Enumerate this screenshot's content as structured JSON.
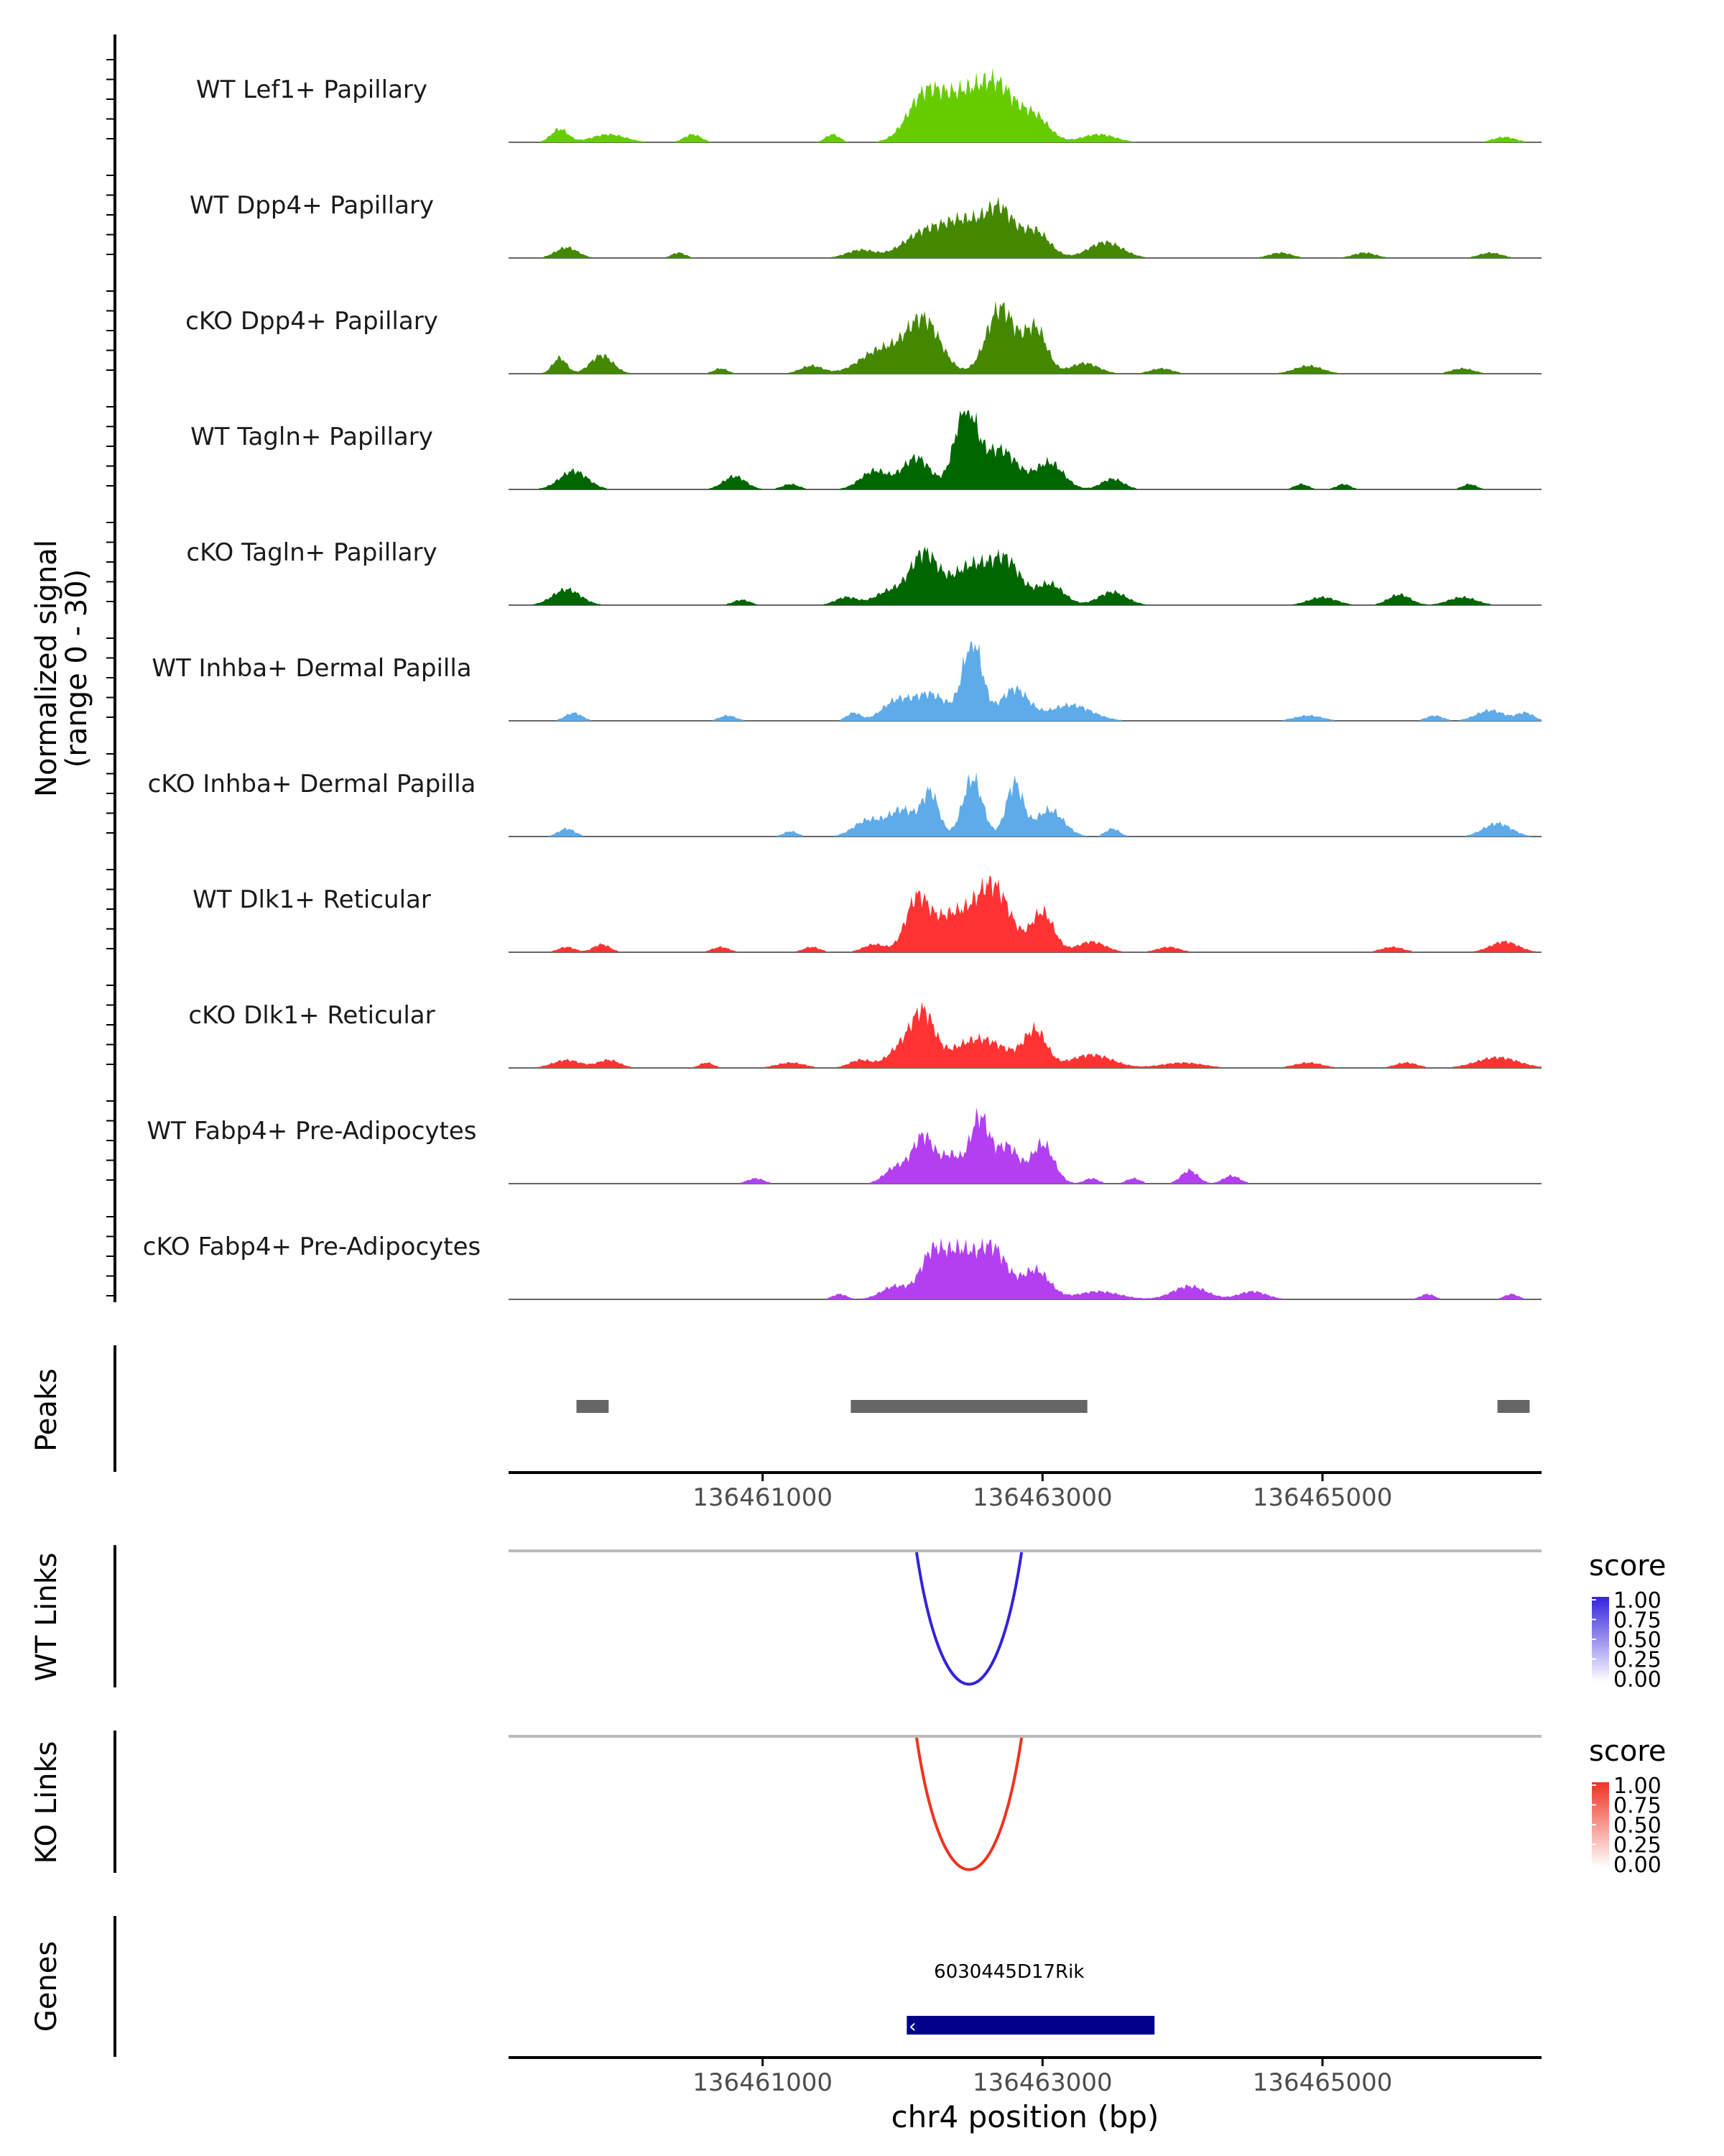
{
  "chart_data": {
    "type": "area",
    "title": "",
    "xlabel": "chr4 position (bp)",
    "x_range": [
      136459185,
      136466565
    ],
    "x_ticks": [
      "136461000",
      "136463000",
      "136465000"
    ],
    "coverage": {
      "ylabel_line1": "Normalized signal",
      "ylabel_line2": "(range 0 - 30)",
      "y_range": [
        0,
        30
      ],
      "tracks": [
        {
          "name": "WT Lef1+ Papillary",
          "color": "#66cc00",
          "peaks": [
            [
              136459550,
              5,
              0.06
            ],
            [
              136459900,
              3,
              0.12
            ],
            [
              136460500,
              3,
              0.06
            ],
            [
              136461500,
              3,
              0.05
            ],
            [
              136462150,
              15,
              0.12
            ],
            [
              136462450,
              18,
              0.18
            ],
            [
              136462700,
              15,
              0.12
            ],
            [
              136462950,
              9,
              0.1
            ],
            [
              136463400,
              3,
              0.12
            ],
            [
              136466300,
              2,
              0.08
            ]
          ]
        },
        {
          "name": "WT Dpp4+ Papillary",
          "color": "#448800",
          "peaks": [
            [
              136459600,
              4,
              0.08
            ],
            [
              136460400,
              2,
              0.05
            ],
            [
              136461700,
              3,
              0.1
            ],
            [
              136462150,
              9,
              0.15
            ],
            [
              136462450,
              13,
              0.15
            ],
            [
              136462700,
              16,
              0.1
            ],
            [
              136462950,
              10,
              0.1
            ],
            [
              136463450,
              6,
              0.12
            ],
            [
              136464700,
              2,
              0.08
            ],
            [
              136465300,
              2,
              0.08
            ],
            [
              136466200,
              2,
              0.08
            ]
          ]
        },
        {
          "name": "cKO Dpp4+ Papillary",
          "color": "#448800",
          "peaks": [
            [
              136459550,
              6,
              0.05
            ],
            [
              136459850,
              7,
              0.08
            ],
            [
              136460700,
              2,
              0.05
            ],
            [
              136461350,
              3,
              0.08
            ],
            [
              136461850,
              9,
              0.15
            ],
            [
              136462150,
              20,
              0.12
            ],
            [
              136462700,
              25,
              0.1
            ],
            [
              136462950,
              17,
              0.08
            ],
            [
              136463300,
              4,
              0.1
            ],
            [
              136463850,
              2,
              0.08
            ],
            [
              136464900,
              3,
              0.1
            ],
            [
              136466000,
              2,
              0.08
            ]
          ]
        },
        {
          "name": "WT Tagln+ Papillary",
          "color": "#006600",
          "peaks": [
            [
              136459650,
              7,
              0.1
            ],
            [
              136460800,
              5,
              0.08
            ],
            [
              136461200,
              2,
              0.06
            ],
            [
              136461800,
              7,
              0.1
            ],
            [
              136462100,
              12,
              0.1
            ],
            [
              136462450,
              30,
              0.08
            ],
            [
              136462700,
              15,
              0.12
            ],
            [
              136463050,
              10,
              0.1
            ],
            [
              136463500,
              4,
              0.08
            ],
            [
              136464850,
              2,
              0.05
            ],
            [
              136465150,
              2,
              0.05
            ],
            [
              136466050,
              2,
              0.05
            ]
          ]
        },
        {
          "name": "cKO Tagln+ Papillary",
          "color": "#006600",
          "peaks": [
            [
              136459600,
              6,
              0.1
            ],
            [
              136460850,
              2,
              0.06
            ],
            [
              136461600,
              3,
              0.08
            ],
            [
              136461900,
              5,
              0.1
            ],
            [
              136462150,
              19,
              0.1
            ],
            [
              136462500,
              15,
              0.15
            ],
            [
              136462750,
              14,
              0.1
            ],
            [
              136463050,
              8,
              0.1
            ],
            [
              136463500,
              5,
              0.1
            ],
            [
              136465000,
              3,
              0.1
            ],
            [
              136465550,
              4,
              0.08
            ],
            [
              136466000,
              3,
              0.1
            ]
          ]
        },
        {
          "name": "WT Inhba+ Dermal Papilla",
          "color": "#5fabe9",
          "peaks": [
            [
              136459650,
              3,
              0.06
            ],
            [
              136460750,
              2,
              0.06
            ],
            [
              136461650,
              3,
              0.05
            ],
            [
              136461950,
              7,
              0.1
            ],
            [
              136462200,
              10,
              0.12
            ],
            [
              136462500,
              30,
              0.07
            ],
            [
              136462800,
              12,
              0.1
            ],
            [
              136463200,
              6,
              0.15
            ],
            [
              136464900,
              2,
              0.1
            ],
            [
              136465800,
              2,
              0.06
            ],
            [
              136466200,
              4,
              0.1
            ],
            [
              136466450,
              3,
              0.06
            ]
          ]
        },
        {
          "name": "cKO Inhba+ Dermal Papilla",
          "color": "#5fabe9",
          "peaks": [
            [
              136459600,
              3,
              0.06
            ],
            [
              136461200,
              2,
              0.05
            ],
            [
              136461750,
              6,
              0.1
            ],
            [
              136462000,
              10,
              0.1
            ],
            [
              136462200,
              16,
              0.06
            ],
            [
              136462500,
              22,
              0.07
            ],
            [
              136462800,
              20,
              0.06
            ],
            [
              136463050,
              10,
              0.1
            ],
            [
              136463500,
              3,
              0.05
            ],
            [
              136466250,
              5,
              0.1
            ]
          ]
        },
        {
          "name": "WT Dlk1+ Reticular",
          "color": "#ff3333",
          "peaks": [
            [
              136459600,
              2,
              0.06
            ],
            [
              136459850,
              3,
              0.06
            ],
            [
              136460700,
              2,
              0.06
            ],
            [
              136461350,
              2,
              0.06
            ],
            [
              136461800,
              3,
              0.08
            ],
            [
              136462100,
              18,
              0.08
            ],
            [
              136462350,
              14,
              0.15
            ],
            [
              136462650,
              24,
              0.12
            ],
            [
              136463000,
              15,
              0.08
            ],
            [
              136463350,
              4,
              0.1
            ],
            [
              136463900,
              2,
              0.08
            ],
            [
              136465500,
              2,
              0.08
            ],
            [
              136466300,
              4,
              0.1
            ]
          ]
        },
        {
          "name": "cKO Dlk1+ Reticular",
          "color": "#ff3333",
          "peaks": [
            [
              136459600,
              3,
              0.1
            ],
            [
              136459900,
              3,
              0.08
            ],
            [
              136460600,
              2,
              0.05
            ],
            [
              136461200,
              2,
              0.1
            ],
            [
              136461700,
              3,
              0.08
            ],
            [
              136462000,
              8,
              0.1
            ],
            [
              136462150,
              18,
              0.08
            ],
            [
              136462550,
              11,
              0.2
            ],
            [
              136462950,
              13,
              0.08
            ],
            [
              136463350,
              5,
              0.15
            ],
            [
              136464000,
              2,
              0.15
            ],
            [
              136464900,
              2,
              0.1
            ],
            [
              136465600,
              2,
              0.08
            ],
            [
              136466250,
              4,
              0.15
            ]
          ]
        },
        {
          "name": "WT Fabp4+ Pre-Adipocytes",
          "color": "#b340f0",
          "peaks": [
            [
              136460950,
              2,
              0.06
            ],
            [
              136461950,
              6,
              0.08
            ],
            [
              136462150,
              18,
              0.08
            ],
            [
              136462350,
              10,
              0.07
            ],
            [
              136462550,
              25,
              0.07
            ],
            [
              136462750,
              14,
              0.08
            ],
            [
              136463000,
              15,
              0.08
            ],
            [
              136463350,
              2,
              0.05
            ],
            [
              136463650,
              2,
              0.05
            ],
            [
              136464050,
              5,
              0.06
            ],
            [
              136464350,
              3,
              0.06
            ]
          ]
        },
        {
          "name": "cKO Fabp4+ Pre-Adipocytes",
          "color": "#b340f0",
          "peaks": [
            [
              136461550,
              2,
              0.05
            ],
            [
              136461950,
              5,
              0.1
            ],
            [
              136462200,
              14,
              0.08
            ],
            [
              136462400,
              18,
              0.12
            ],
            [
              136462650,
              18,
              0.1
            ],
            [
              136462950,
              11,
              0.1
            ],
            [
              136463400,
              3,
              0.15
            ],
            [
              136464050,
              5,
              0.12
            ],
            [
              136464500,
              3,
              0.1
            ],
            [
              136465750,
              2,
              0.05
            ],
            [
              136466350,
              2,
              0.05
            ]
          ]
        }
      ]
    },
    "peaks_track": {
      "label": "Peaks",
      "color": "#666666",
      "regions": [
        [
          136459670,
          136459900
        ],
        [
          136461630,
          136463320
        ],
        [
          136466250,
          136466480
        ]
      ]
    },
    "links": [
      {
        "label": "WT Links",
        "legend_title": "score",
        "color": "#3322dd",
        "score": 1.0,
        "start": 136462100,
        "end": 136462850,
        "legend_ticks": [
          "1.00",
          "0.75",
          "0.50",
          "0.25",
          "0.00"
        ]
      },
      {
        "label": "KO Links",
        "legend_title": "score",
        "color": "#ee3322",
        "score": 1.0,
        "start": 136462100,
        "end": 136462850,
        "legend_ticks": [
          "1.00",
          "0.75",
          "0.50",
          "0.25",
          "0.00"
        ]
      }
    ],
    "genes_track": {
      "label": "Genes",
      "gene_name": "6030445D17Rik",
      "color": "#00008b",
      "start": 136462030,
      "end": 136463800,
      "strand": "-"
    }
  },
  "colors": {
    "axis": "#000000",
    "baseline": "#666666",
    "link_baseline": "#bbbbbb",
    "tick_text": "#4d4d4d"
  }
}
